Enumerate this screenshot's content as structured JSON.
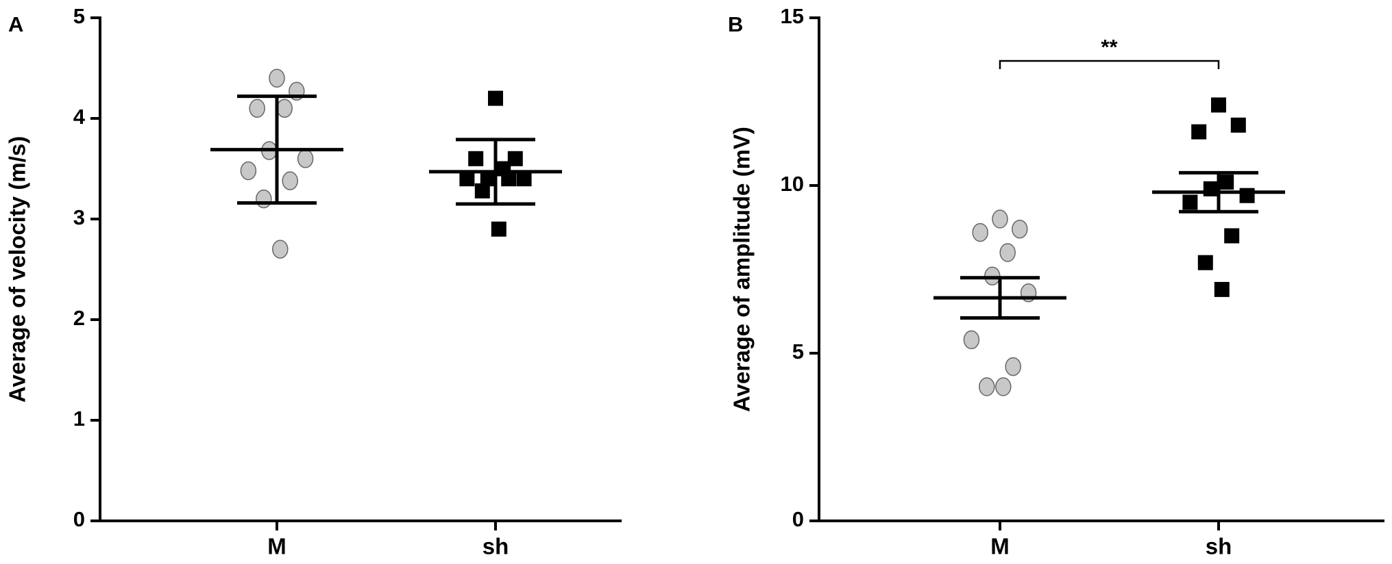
{
  "chart_data": [
    {
      "type": "dot",
      "panel_label": "A",
      "y_label": "Average of velocity (m/s)",
      "categories": [
        "M",
        "sh"
      ],
      "ylim": [
        0,
        5
      ],
      "yticks": [
        0,
        1,
        2,
        3,
        4,
        5
      ],
      "groups": [
        {
          "marker": "circle",
          "color": "#c8c8c8",
          "values": [
            4.4,
            4.27,
            4.1,
            4.1,
            3.68,
            3.6,
            3.48,
            3.38,
            3.2,
            2.7
          ],
          "mean": 3.69,
          "error": 0.53
        },
        {
          "marker": "square",
          "color": "#000000",
          "values": [
            4.2,
            3.6,
            3.6,
            3.5,
            3.4,
            3.4,
            3.4,
            3.4,
            3.28,
            2.9
          ],
          "mean": 3.47,
          "error": 0.32
        }
      ]
    },
    {
      "type": "dot",
      "panel_label": "B",
      "y_label": "Average of  amplitude (mV)",
      "categories": [
        "M",
        "sh"
      ],
      "ylim": [
        0,
        15
      ],
      "yticks": [
        0,
        5,
        10,
        15
      ],
      "annotation": "**",
      "groups": [
        {
          "marker": "circle",
          "color": "#c8c8c8",
          "values": [
            9.0,
            8.7,
            8.6,
            8.0,
            7.3,
            6.8,
            5.4,
            4.6,
            4.0,
            4.0
          ],
          "mean": 6.65,
          "error": 0.6
        },
        {
          "marker": "square",
          "color": "#000000",
          "values": [
            12.4,
            11.8,
            11.6,
            10.1,
            9.9,
            9.7,
            9.5,
            8.5,
            7.7,
            6.9
          ],
          "mean": 9.8,
          "error": 0.58
        }
      ]
    }
  ]
}
